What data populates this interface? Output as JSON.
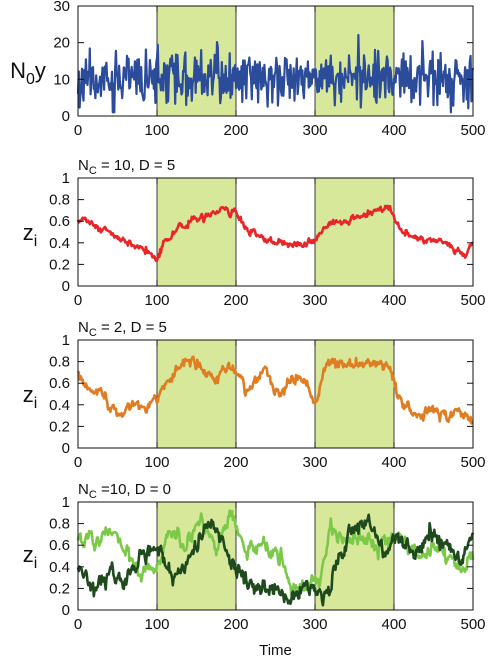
{
  "chart_data": [
    {
      "type": "line",
      "ylabel": "N",
      "ylabel_sub": "0",
      "ylabel_suffix": "y",
      "annotation": "",
      "xlim": [
        0,
        500
      ],
      "ylim": [
        0,
        30
      ],
      "xticks": [
        0,
        100,
        200,
        300,
        400,
        500
      ],
      "yticks": [
        0,
        10,
        20,
        30
      ],
      "highlight_intervals": [
        [
          100,
          200
        ],
        [
          300,
          400
        ]
      ],
      "series": [
        {
          "color": "#2b4c9b",
          "kind": "noise",
          "mean": 10,
          "sd": 3.5,
          "min": 1,
          "max": 24,
          "seed": 11
        }
      ]
    },
    {
      "type": "line",
      "ylabel": "z",
      "ylabel_sub": "i",
      "ylabel_suffix": "",
      "annotation": "N",
      "annotation_sub": "C",
      "annotation_rest": " = 10, D = 5",
      "xlim": [
        0,
        500
      ],
      "ylim": [
        0,
        1
      ],
      "xticks": [
        0,
        100,
        200,
        300,
        400,
        500
      ],
      "yticks": [
        0,
        0.2,
        0.4,
        0.6,
        0.8,
        1
      ],
      "highlight_intervals": [
        [
          100,
          200
        ],
        [
          300,
          400
        ]
      ],
      "series": [
        {
          "color": "#e8262a",
          "kind": "keypoints",
          "noise": 0.012,
          "seed": 5,
          "x": [
            0,
            10,
            30,
            50,
            70,
            85,
            100,
            110,
            130,
            150,
            170,
            185,
            200,
            215,
            240,
            260,
            280,
            300,
            320,
            350,
            380,
            395,
            400,
            410,
            430,
            450,
            470,
            490,
            500
          ],
          "y": [
            0.62,
            0.58,
            0.52,
            0.46,
            0.38,
            0.35,
            0.24,
            0.42,
            0.55,
            0.62,
            0.66,
            0.72,
            0.68,
            0.5,
            0.42,
            0.4,
            0.38,
            0.42,
            0.58,
            0.63,
            0.7,
            0.72,
            0.64,
            0.5,
            0.43,
            0.42,
            0.4,
            0.28,
            0.4
          ]
        }
      ]
    },
    {
      "type": "line",
      "ylabel": "z",
      "ylabel_sub": "i",
      "ylabel_suffix": "",
      "annotation": "N",
      "annotation_sub": "C",
      "annotation_rest": " = 2, D = 5",
      "xlim": [
        0,
        500
      ],
      "ylim": [
        0,
        1
      ],
      "xticks": [
        0,
        100,
        200,
        300,
        400,
        500
      ],
      "yticks": [
        0,
        0.2,
        0.4,
        0.6,
        0.8,
        1
      ],
      "highlight_intervals": [
        [
          100,
          200
        ],
        [
          300,
          400
        ]
      ],
      "series": [
        {
          "color": "#e07d22",
          "kind": "keypoints",
          "noise": 0.02,
          "seed": 9,
          "x": [
            0,
            15,
            35,
            55,
            70,
            85,
            100,
            115,
            130,
            145,
            160,
            175,
            190,
            200,
            215,
            235,
            255,
            275,
            290,
            300,
            315,
            340,
            370,
            395,
            400,
            415,
            430,
            450,
            470,
            490,
            500
          ],
          "y": [
            0.68,
            0.55,
            0.45,
            0.3,
            0.42,
            0.4,
            0.45,
            0.62,
            0.78,
            0.85,
            0.72,
            0.62,
            0.78,
            0.68,
            0.55,
            0.72,
            0.5,
            0.68,
            0.6,
            0.42,
            0.78,
            0.75,
            0.8,
            0.74,
            0.6,
            0.38,
            0.3,
            0.36,
            0.3,
            0.35,
            0.23
          ]
        }
      ]
    },
    {
      "type": "line",
      "ylabel": "z",
      "ylabel_sub": "i",
      "ylabel_suffix": "",
      "annotation": "N",
      "annotation_sub": "C",
      "annotation_rest": " =10, D = 0",
      "xlabel": "Time",
      "xlim": [
        0,
        500
      ],
      "ylim": [
        0,
        1
      ],
      "xticks": [
        0,
        100,
        200,
        300,
        400,
        500
      ],
      "yticks": [
        0,
        0.2,
        0.4,
        0.6,
        0.8,
        1
      ],
      "highlight_intervals": [
        [
          100,
          200
        ],
        [
          300,
          400
        ]
      ],
      "series": [
        {
          "color": "#7cc94a",
          "kind": "keypoints",
          "noise": 0.03,
          "seed": 21,
          "x": [
            0,
            20,
            40,
            60,
            80,
            100,
            115,
            135,
            155,
            175,
            195,
            210,
            230,
            250,
            270,
            290,
            305,
            320,
            340,
            360,
            380,
            400,
            420,
            440,
            460,
            480,
            500
          ],
          "y": [
            0.7,
            0.6,
            0.75,
            0.55,
            0.3,
            0.42,
            0.72,
            0.62,
            0.85,
            0.6,
            0.88,
            0.55,
            0.6,
            0.5,
            0.28,
            0.22,
            0.3,
            0.75,
            0.62,
            0.72,
            0.55,
            0.7,
            0.58,
            0.48,
            0.6,
            0.35,
            0.5
          ]
        },
        {
          "color": "#1f4a1e",
          "kind": "keypoints",
          "noise": 0.03,
          "seed": 33,
          "x": [
            0,
            20,
            40,
            60,
            80,
            100,
            120,
            140,
            160,
            180,
            195,
            215,
            240,
            265,
            290,
            310,
            330,
            350,
            370,
            390,
            405,
            425,
            445,
            465,
            485,
            500
          ],
          "y": [
            0.38,
            0.2,
            0.35,
            0.28,
            0.45,
            0.6,
            0.3,
            0.45,
            0.78,
            0.7,
            0.42,
            0.22,
            0.2,
            0.1,
            0.2,
            0.18,
            0.45,
            0.75,
            0.8,
            0.5,
            0.72,
            0.45,
            0.7,
            0.6,
            0.45,
            0.72
          ]
        }
      ]
    }
  ]
}
